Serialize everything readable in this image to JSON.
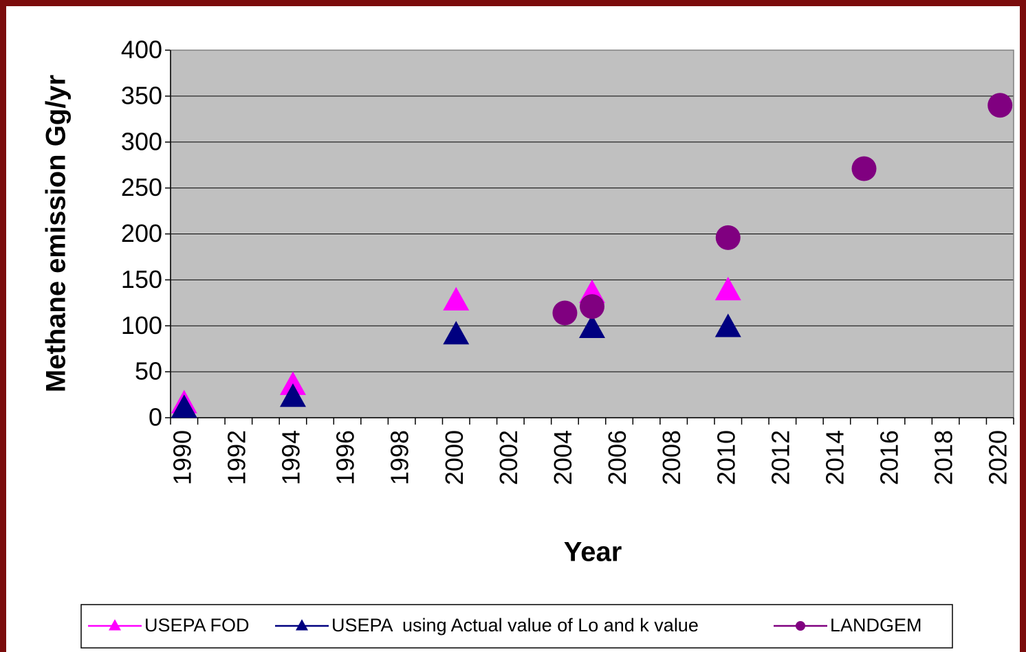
{
  "chart_data": {
    "type": "line",
    "markers_only": true,
    "x_label": "Year",
    "y_label": "Methane emission Gg/yr",
    "categories": [
      "1990",
      null,
      "1992",
      null,
      "1994",
      null,
      "1996",
      null,
      "1998",
      null,
      "2000",
      null,
      "2002",
      null,
      "2004",
      null,
      "2006",
      null,
      "2008",
      null,
      "2010",
      null,
      "2012",
      null,
      "2014",
      null,
      "2016",
      null,
      "2018",
      null,
      "2020"
    ],
    "series": [
      {
        "name": "USEPA FOD",
        "color": "#ff00ff",
        "marker": "triangle",
        "values": [
          15,
          null,
          null,
          null,
          35,
          null,
          null,
          null,
          null,
          null,
          127,
          null,
          null,
          null,
          null,
          135,
          null,
          null,
          null,
          null,
          138,
          null,
          null,
          null,
          null,
          null,
          null,
          null,
          null,
          null,
          null
        ]
      },
      {
        "name": "USEPA  using Actual value of Lo and k value",
        "color": "#000080",
        "marker": "triangle",
        "values": [
          10,
          null,
          null,
          null,
          22,
          null,
          null,
          null,
          null,
          null,
          90,
          null,
          null,
          null,
          null,
          97,
          null,
          null,
          null,
          null,
          98,
          null,
          null,
          null,
          null,
          null,
          null,
          null,
          null,
          null,
          null
        ]
      },
      {
        "name": "LANDGEM",
        "color": "#800080",
        "marker": "circle",
        "values": [
          null,
          null,
          null,
          null,
          null,
          null,
          null,
          null,
          null,
          null,
          null,
          null,
          null,
          null,
          114,
          121,
          null,
          null,
          null,
          null,
          196,
          null,
          null,
          null,
          null,
          271,
          null,
          null,
          null,
          null,
          340
        ]
      }
    ],
    "ylim": [
      0,
      400
    ],
    "yticks": [
      0,
      50,
      100,
      150,
      200,
      250,
      300,
      350,
      400
    ],
    "grid": true,
    "plot_background": "#c0c0c0",
    "legend": "bottom"
  }
}
